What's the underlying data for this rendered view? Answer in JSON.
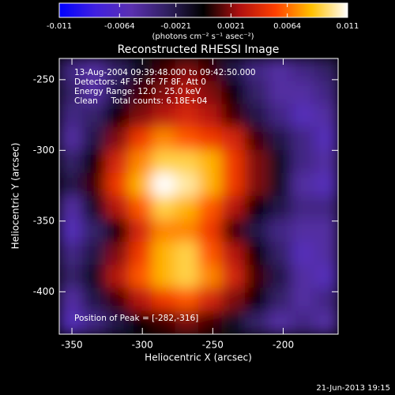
{
  "chart_data": {
    "type": "heatmap",
    "title": "Reconstructed RHESSI Image",
    "x_label": "Heliocentric X (arcsec)",
    "y_label": "Heliocentric Y (arcsec)",
    "colorbar_label": "(photons cm⁻² s⁻¹ asec⁻²)",
    "annotations": [
      "13-Aug-2004 09:39:48.000 to 09:42:50.000",
      "Detectors: 4F 5F 6F 7F 8F, Att 0",
      "Energy Range: 12.0 - 25.0 keV",
      "Clean     Total counts: 6.18E+04"
    ],
    "peak_label": "Position of Peak = [-282,-316]",
    "footer": "21-Jun-2013 19:15",
    "xlim": [
      -359,
      -161
    ],
    "xticks": [
      -350,
      -300,
      -250,
      -200
    ],
    "ylim": [
      -430,
      -235
    ],
    "yticks": [
      -400,
      -350,
      -300,
      -250
    ],
    "clim": [
      -0.011,
      0.011
    ],
    "cticks": [
      -0.011,
      -0.0064,
      -0.0021,
      0.0021,
      0.0064,
      0.011
    ],
    "colormap": [
      "#0000ff",
      "#4020e0",
      "#5a30b0",
      "#302060",
      "#000000",
      "#b01010",
      "#ff4000",
      "#ffc000",
      "#ffffff"
    ],
    "z": [
      [
        -0.004,
        -0.005,
        -0.003,
        -0.001,
        0.001,
        0.002,
        0.001,
        -0.002,
        -0.004,
        -0.005,
        -0.004,
        -0.003
      ],
      [
        -0.003,
        -0.005,
        -0.002,
        0.001,
        0.002,
        0.003,
        0.002,
        0,
        -0.003,
        -0.005,
        -0.005,
        -0.004
      ],
      [
        -0.004,
        -0.003,
        0,
        0.002,
        0.003,
        0.004,
        0.003,
        0.001,
        -0.002,
        -0.004,
        -0.006,
        -0.005
      ],
      [
        -0.005,
        -0.002,
        0.002,
        0.005,
        0.007,
        0.006,
        0.005,
        0.004,
        0.001,
        -0.002,
        -0.004,
        -0.006
      ],
      [
        -0.003,
        0,
        0.004,
        0.007,
        0.009,
        0.009,
        0.008,
        0.005,
        0.002,
        -0.001,
        -0.004,
        -0.005
      ],
      [
        -0.002,
        0.001,
        0.005,
        0.008,
        0.011,
        0.01,
        0.008,
        0.005,
        0.002,
        -0.001,
        -0.005,
        -0.006
      ],
      [
        -0.005,
        -0.001,
        0.003,
        0.006,
        0.009,
        0.008,
        0.006,
        0.003,
        0,
        -0.002,
        -0.004,
        -0.004
      ],
      [
        -0.006,
        -0.003,
        0,
        0.004,
        0.007,
        0.007,
        0.005,
        0.001,
        -0.002,
        -0.004,
        -0.005,
        -0.005
      ],
      [
        -0.004,
        -0.002,
        0.002,
        0.005,
        0.008,
        0.009,
        0.006,
        0.003,
        0,
        -0.003,
        -0.006,
        -0.005
      ],
      [
        -0.003,
        -0.001,
        0.003,
        0.006,
        0.008,
        0.009,
        0.007,
        0.004,
        0.001,
        -0.002,
        -0.005,
        -0.006
      ],
      [
        -0.005,
        -0.002,
        0.001,
        0.003,
        0.005,
        0.006,
        0.004,
        0.002,
        0,
        -0.003,
        -0.005,
        -0.004
      ],
      [
        -0.006,
        -0.004,
        -0.002,
        0,
        0.001,
        0.002,
        0.001,
        -0.001,
        -0.003,
        -0.005,
        -0.004,
        -0.005
      ]
    ]
  }
}
